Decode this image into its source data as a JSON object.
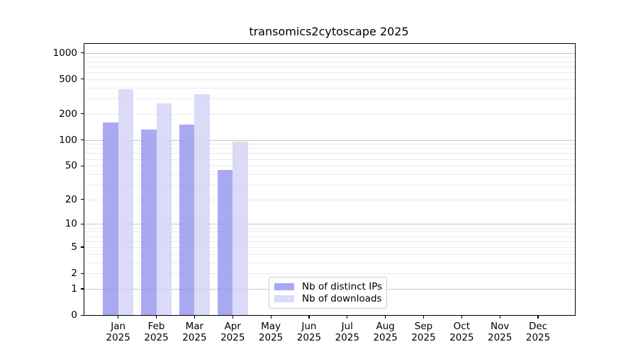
{
  "figure": {
    "background": "#ffffff"
  },
  "colors": {
    "axis_frame": "#000000",
    "tick_text": "#000000",
    "grid_major": "#c8c8c8",
    "grid_minor": "#ebebeb",
    "legend_border": "#cccccc",
    "legend_background": "#ffffff",
    "series_distinct_ips": "#9a9aef",
    "series_downloads": "#d5d5f6"
  },
  "chart_data": {
    "type": "bar",
    "title": "transomics2cytoscape 2025",
    "months": [
      "Jan",
      "Feb",
      "Mar",
      "Apr",
      "May",
      "Jun",
      "Jul",
      "Aug",
      "Sep",
      "Oct",
      "Nov",
      "Dec"
    ],
    "year": "2025",
    "categories": [
      "Jan 2025",
      "Feb 2025",
      "Mar 2025",
      "Apr 2025",
      "May 2025",
      "Jun 2025",
      "Jul 2025",
      "Aug 2025",
      "Sep 2025",
      "Oct 2025",
      "Nov 2025",
      "Dec 2025"
    ],
    "series": [
      {
        "name": "Nb of distinct IPs",
        "color": "#9a9aef",
        "alpha": 0.85,
        "values": [
          160,
          132,
          150,
          45,
          null,
          null,
          null,
          null,
          null,
          null,
          null,
          null
        ]
      },
      {
        "name": "Nb of downloads",
        "color": "#d5d5f6",
        "alpha": 0.85,
        "values": [
          380,
          265,
          335,
          95,
          null,
          null,
          null,
          null,
          null,
          null,
          null,
          null
        ]
      }
    ],
    "y_ticks": [
      0,
      1,
      2,
      5,
      10,
      20,
      50,
      100,
      200,
      500,
      1000
    ],
    "y_scale": "log10(1+x)",
    "ylim": [
      0,
      1250
    ],
    "grid": "horizontal major+minor log gridlines",
    "legend_position": "inside-bottom-center"
  }
}
